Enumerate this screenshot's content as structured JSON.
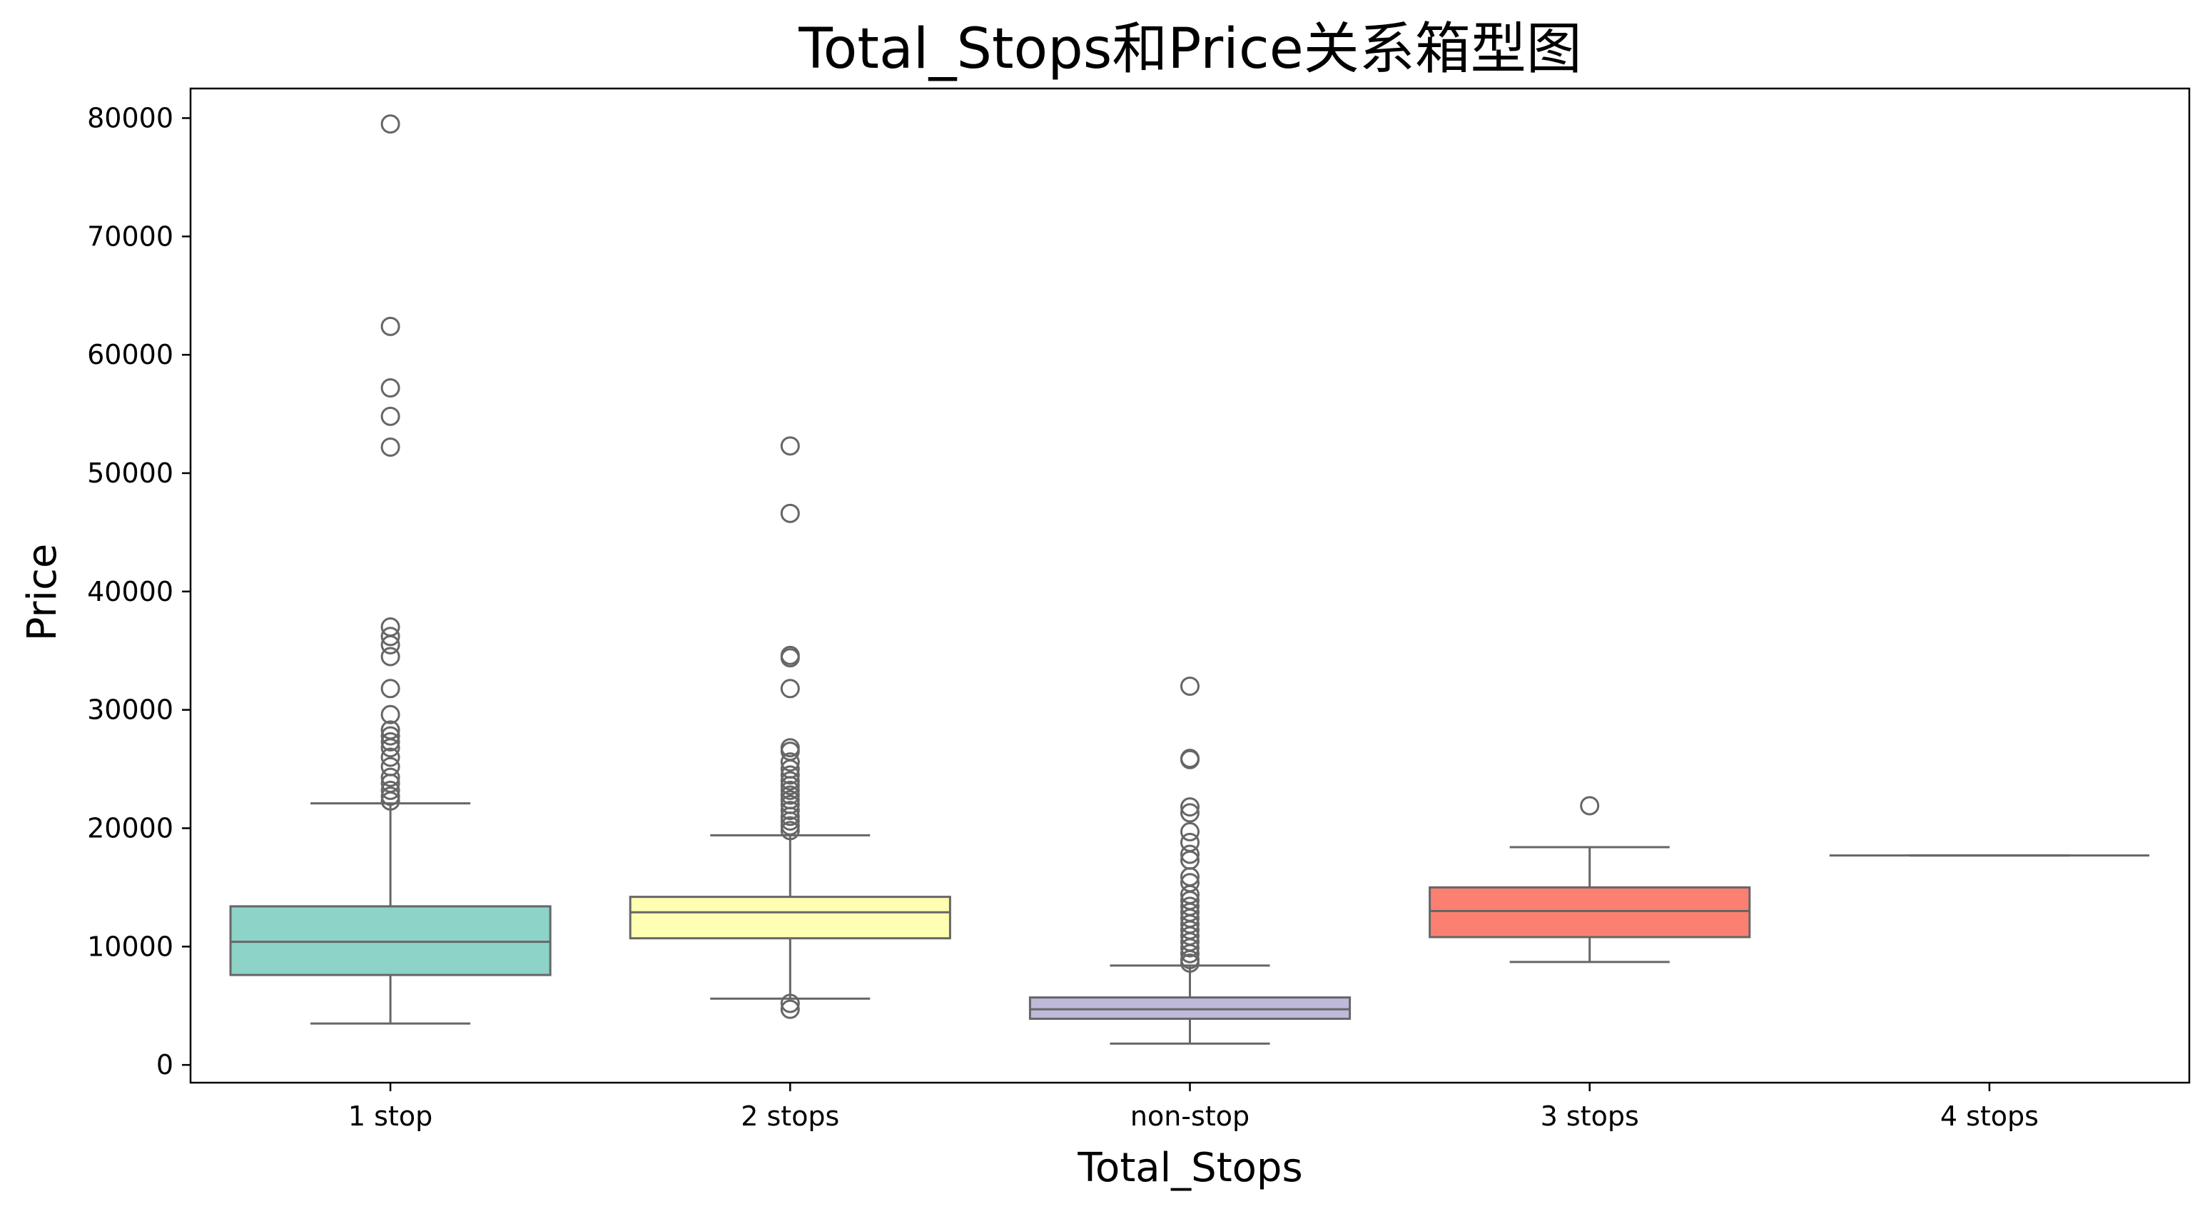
{
  "chart_data": {
    "type": "box",
    "title": "Total_Stops和Price关系箱型图",
    "xlabel": "Total_Stops",
    "ylabel": "Price",
    "ylim": [
      -1500,
      82500
    ],
    "yticks": [
      0,
      10000,
      20000,
      30000,
      40000,
      50000,
      60000,
      70000,
      80000
    ],
    "legend": "none",
    "grid": false,
    "categories": [
      "1 stop",
      "2 stops",
      "non-stop",
      "3 stops",
      "4 stops"
    ],
    "boxes": [
      {
        "category": "1 stop",
        "color": "#8dd3c7",
        "whisker_low": 3500,
        "q1": 7600,
        "median": 10400,
        "q3": 13400,
        "whisker_high": 22100,
        "fliers": [
          79500,
          62400,
          57200,
          54800,
          52200,
          37000,
          36200,
          35500,
          34500,
          31800,
          29600,
          28300,
          27800,
          27300,
          26800,
          26000,
          25200,
          24300,
          23800,
          23200,
          22700,
          22300
        ]
      },
      {
        "category": "2 stops",
        "color": "#ffffb3",
        "whisker_low": 5600,
        "q1": 10700,
        "median": 12900,
        "q3": 14200,
        "whisker_high": 19400,
        "fliers": [
          52300,
          46600,
          34600,
          34400,
          31800,
          26800,
          26500,
          25600,
          25000,
          24500,
          24000,
          23600,
          23200,
          22800,
          22400,
          22000,
          21500,
          21000,
          20600,
          20200,
          19800,
          5200,
          4700
        ]
      },
      {
        "category": "non-stop",
        "color": "#bebada",
        "whisker_low": 1800,
        "q1": 3900,
        "median": 4700,
        "q3": 5700,
        "whisker_high": 8400,
        "fliers": [
          32000,
          25900,
          25800,
          21800,
          21300,
          19700,
          18800,
          17800,
          17300,
          15900,
          15400,
          14400,
          13900,
          13400,
          12900,
          12400,
          11900,
          11400,
          10900,
          10400,
          9900,
          9400,
          8900,
          8600
        ]
      },
      {
        "category": "3 stops",
        "color": "#fb8072",
        "whisker_low": 8700,
        "q1": 10800,
        "median": 13000,
        "q3": 15000,
        "whisker_high": 18400,
        "fliers": [
          21900
        ]
      },
      {
        "category": "4 stops",
        "color": "#80b1d3",
        "whisker_low": 17700,
        "q1": 17700,
        "median": 17700,
        "q3": 17700,
        "whisker_high": 17700,
        "fliers": []
      }
    ]
  }
}
